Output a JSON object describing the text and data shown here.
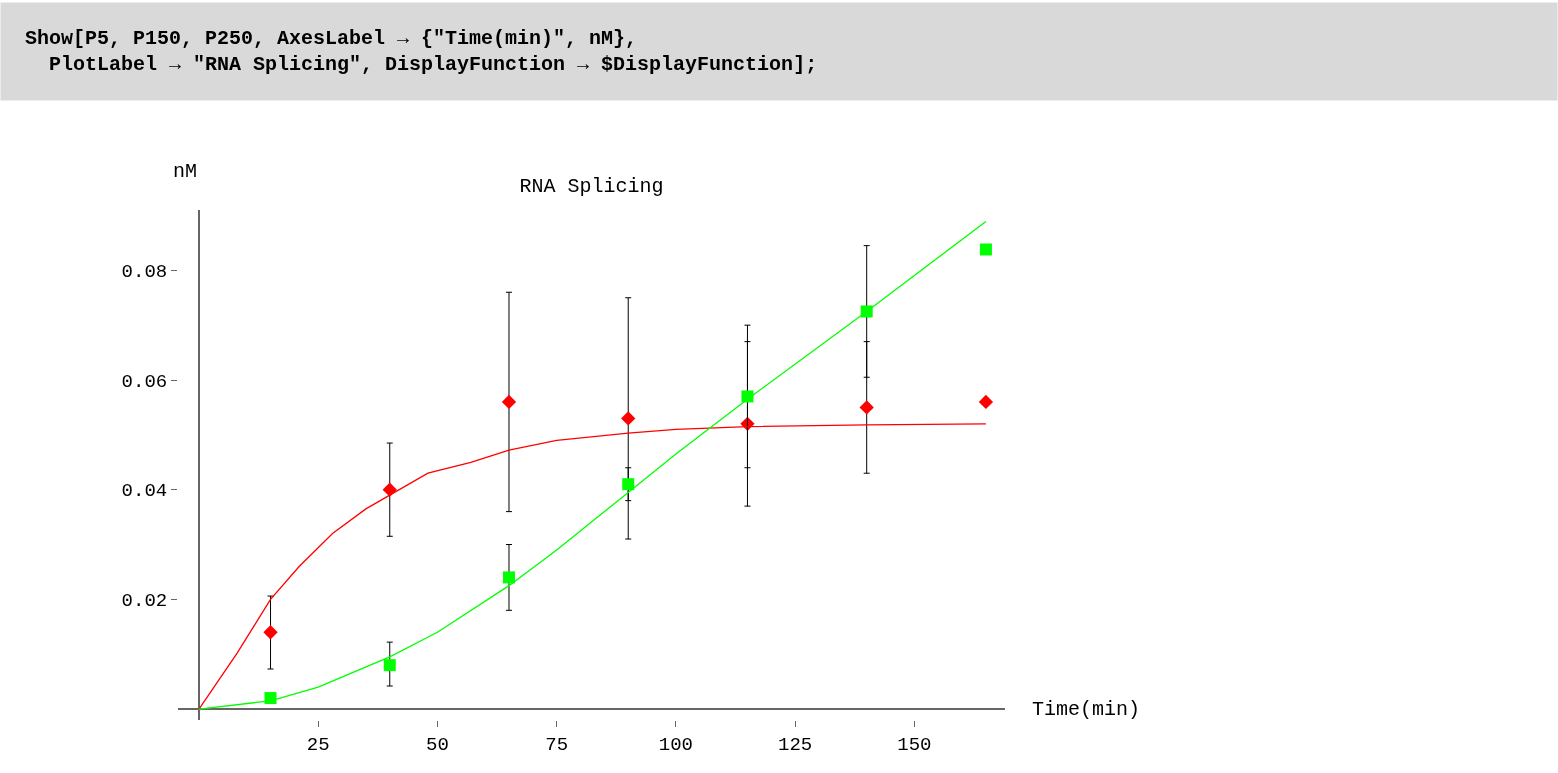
{
  "chart_data": {
    "type": "scatter",
    "title": "RNA Splicing",
    "xlabel": "Time(min)",
    "ylabel": "nM",
    "annotations": [
      "Show[P5, P150, P250, AxesLabel → {\"Time(min)\", nM},\n  PlotLabel → \"RNA Splicing\", DisplayFunction → $DisplayFunction];"
    ],
    "x": [
      15,
      40,
      65,
      90,
      115,
      140,
      165
    ],
    "series": [
      {
        "color": "#ff0000",
        "marker": "diamond",
        "values": [
          0.014,
          0.04,
          0.056,
          0.053,
          0.052,
          0.055,
          0.056
        ],
        "errors": [
          [
            0.0073,
            0.0206
          ],
          [
            0.0315,
            0.0485
          ],
          [
            0.036,
            0.076
          ],
          [
            0.031,
            0.075
          ],
          [
            0.037,
            0.067
          ],
          [
            0.043,
            0.067
          ],
          null
        ]
      },
      {
        "color": "#00ff00",
        "marker": "square",
        "values": [
          0.002,
          0.008,
          0.024,
          0.041,
          0.057,
          0.0725,
          0.0838
        ],
        "errors": [
          null,
          [
            0.0042,
            0.0122
          ],
          [
            0.018,
            0.03
          ],
          [
            0.038,
            0.044
          ],
          [
            0.044,
            0.07
          ],
          [
            0.0605,
            0.0845
          ],
          null
        ]
      },
      {
        "type": "line",
        "color": "#ff0000",
        "marker": "none",
        "x": [
          0,
          8,
          15,
          21,
          28,
          35,
          40,
          48,
          57,
          65,
          75,
          90,
          100,
          115,
          140,
          165
        ],
        "values": [
          0,
          0.0102,
          0.02,
          0.026,
          0.032,
          0.0365,
          0.039,
          0.043,
          0.045,
          0.0472,
          0.049,
          0.0503,
          0.051,
          0.0515,
          0.0518,
          0.052
        ]
      },
      {
        "type": "line",
        "color": "#00ff00",
        "marker": "none",
        "x": [
          0,
          15,
          25,
          40,
          50,
          65,
          75,
          90,
          100,
          115,
          140,
          165
        ],
        "values": [
          0,
          0.0015,
          0.004,
          0.0095,
          0.014,
          0.0225,
          0.029,
          0.0395,
          0.0465,
          0.0565,
          0.0725,
          0.0889
        ]
      }
    ],
    "xlim": [
      -4.4,
      169
    ],
    "ylim": [
      -0.002,
      0.091
    ],
    "xticks": [
      25,
      50,
      75,
      100,
      125,
      150
    ],
    "yticks": [
      0.02,
      0.04,
      0.06,
      0.08
    ]
  }
}
